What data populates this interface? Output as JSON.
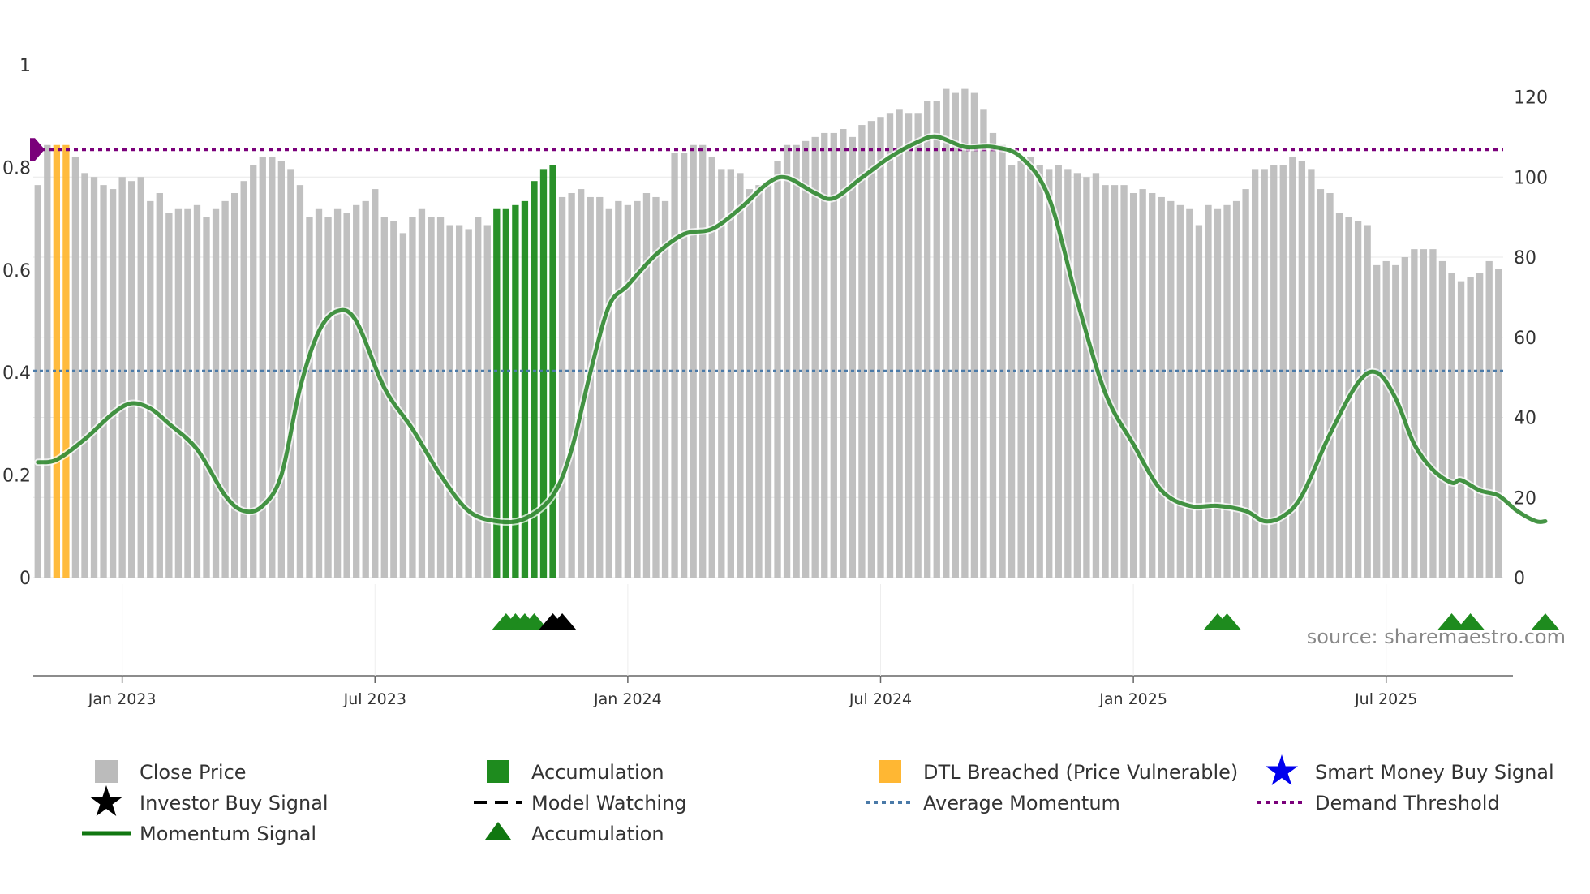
{
  "chart_data": {
    "type": "bar",
    "title": "",
    "source_text": "source: sharemaestro.com",
    "left_axis": {
      "ticks": [
        0,
        0.2,
        0.4,
        0.6,
        0.8,
        1
      ],
      "tick_labels": [
        "0",
        "0.2",
        "0.4",
        "0.6",
        "0.8",
        "1"
      ],
      "ylim": [
        0,
        1
      ]
    },
    "right_axis": {
      "ticks": [
        0,
        20,
        40,
        60,
        80,
        100,
        120
      ],
      "tick_labels": [
        "0",
        "20",
        "40",
        "60",
        "80",
        "100",
        "120"
      ],
      "ylim": [
        0,
        128
      ]
    },
    "x_axis": {
      "tick_labels": [
        "Jan 2023",
        "Jul 2023",
        "Jan 2024",
        "Jul 2024",
        "Jan 2025",
        "Jul 2025"
      ],
      "tick_index": [
        9,
        36,
        63,
        90,
        117,
        144
      ]
    },
    "average_momentum": 0.403,
    "demand_threshold": 0.835,
    "close_price": [
      98,
      108,
      108,
      108,
      105,
      101,
      100,
      98,
      97,
      100,
      99,
      100,
      94,
      96,
      91,
      92,
      92,
      93,
      90,
      92,
      94,
      96,
      99,
      103,
      105,
      105,
      104,
      102,
      98,
      90,
      92,
      90,
      92,
      91,
      93,
      94,
      97,
      90,
      89,
      86,
      90,
      92,
      90,
      90,
      88,
      88,
      87,
      90,
      88,
      92,
      92,
      93,
      94,
      99,
      102,
      103,
      95,
      96,
      97,
      95,
      95,
      92,
      94,
      93,
      94,
      96,
      95,
      94,
      106,
      106,
      108,
      108,
      105,
      102,
      102,
      101,
      97,
      98,
      98,
      104,
      108,
      108,
      109,
      110,
      111,
      111,
      112,
      110,
      113,
      114,
      115,
      116,
      117,
      116,
      116,
      119,
      119,
      122,
      121,
      122,
      121,
      117,
      111,
      108,
      103,
      104,
      105,
      103,
      102,
      103,
      102,
      101,
      100,
      101,
      98,
      98,
      98,
      96,
      97,
      96,
      95,
      94,
      93,
      92,
      88,
      93,
      92,
      93,
      94,
      97,
      102,
      102,
      103,
      103,
      105,
      104,
      102,
      97,
      96,
      91,
      90,
      89,
      88,
      78,
      79,
      78,
      80,
      82,
      82,
      82,
      79,
      76,
      74,
      75,
      76,
      79,
      77
    ],
    "bar_state": [
      "g",
      "g",
      "o",
      "o",
      "g",
      "g",
      "g",
      "g",
      "g",
      "g",
      "g",
      "g",
      "g",
      "g",
      "g",
      "g",
      "g",
      "g",
      "g",
      "g",
      "g",
      "g",
      "g",
      "g",
      "g",
      "g",
      "g",
      "g",
      "g",
      "g",
      "g",
      "g",
      "g",
      "g",
      "g",
      "g",
      "g",
      "g",
      "g",
      "g",
      "g",
      "g",
      "g",
      "g",
      "g",
      "g",
      "g",
      "g",
      "g",
      "a",
      "a",
      "a",
      "a",
      "a",
      "a",
      "a",
      "g",
      "g",
      "g",
      "g",
      "g",
      "g",
      "g",
      "g",
      "g",
      "g",
      "g",
      "g",
      "g",
      "g",
      "g",
      "g",
      "g",
      "g",
      "g",
      "g",
      "g",
      "g",
      "g",
      "g",
      "g",
      "g",
      "g",
      "g",
      "g",
      "g",
      "g",
      "g",
      "g",
      "g",
      "g",
      "g",
      "g",
      "g",
      "g",
      "g",
      "g",
      "g",
      "g",
      "g",
      "g",
      "g",
      "g",
      "g",
      "g",
      "g",
      "g",
      "g",
      "g",
      "g",
      "g",
      "g",
      "g",
      "g",
      "g",
      "g",
      "g",
      "g",
      "g",
      "g",
      "g",
      "g",
      "g",
      "g",
      "g",
      "g",
      "g",
      "g",
      "g",
      "g",
      "g",
      "g",
      "g",
      "g",
      "g",
      "g",
      "g",
      "g",
      "g",
      "g",
      "g",
      "g",
      "g",
      "g",
      "g",
      "g",
      "g",
      "g",
      "g",
      "g",
      "g",
      "g",
      "g",
      "g",
      "g",
      "g",
      "g"
    ],
    "momentum_points": [
      [
        0,
        0.225
      ],
      [
        2,
        0.23
      ],
      [
        5,
        0.27
      ],
      [
        8,
        0.32
      ],
      [
        10,
        0.34
      ],
      [
        12,
        0.33
      ],
      [
        14,
        0.3
      ],
      [
        17,
        0.25
      ],
      [
        20,
        0.16
      ],
      [
        22,
        0.13
      ],
      [
        24,
        0.14
      ],
      [
        26,
        0.2
      ],
      [
        28,
        0.37
      ],
      [
        30,
        0.48
      ],
      [
        32,
        0.52
      ],
      [
        34,
        0.5
      ],
      [
        37,
        0.37
      ],
      [
        40,
        0.29
      ],
      [
        43,
        0.2
      ],
      [
        46,
        0.13
      ],
      [
        49,
        0.11
      ],
      [
        52,
        0.115
      ],
      [
        55,
        0.16
      ],
      [
        57,
        0.25
      ],
      [
        59,
        0.4
      ],
      [
        61,
        0.53
      ],
      [
        63,
        0.57
      ],
      [
        66,
        0.63
      ],
      [
        69,
        0.67
      ],
      [
        72,
        0.68
      ],
      [
        75,
        0.72
      ],
      [
        78,
        0.77
      ],
      [
        80,
        0.78
      ],
      [
        83,
        0.75
      ],
      [
        85,
        0.74
      ],
      [
        88,
        0.78
      ],
      [
        91,
        0.82
      ],
      [
        94,
        0.85
      ],
      [
        96,
        0.86
      ],
      [
        99,
        0.84
      ],
      [
        102,
        0.84
      ],
      [
        105,
        0.82
      ],
      [
        108,
        0.74
      ],
      [
        111,
        0.54
      ],
      [
        114,
        0.36
      ],
      [
        117,
        0.26
      ],
      [
        120,
        0.17
      ],
      [
        123,
        0.14
      ],
      [
        126,
        0.14
      ],
      [
        129,
        0.13
      ],
      [
        131,
        0.11
      ],
      [
        133,
        0.12
      ],
      [
        135,
        0.16
      ],
      [
        138,
        0.28
      ],
      [
        141,
        0.38
      ],
      [
        143,
        0.4
      ],
      [
        145,
        0.35
      ],
      [
        147,
        0.26
      ],
      [
        149,
        0.21
      ],
      [
        151,
        0.185
      ],
      [
        152,
        0.19
      ],
      [
        154,
        0.17
      ],
      [
        156,
        0.16
      ],
      [
        158,
        0.13
      ],
      [
        160,
        0.11
      ],
      [
        161,
        0.11
      ]
    ],
    "accumulation_markers": [
      50,
      51,
      52,
      53,
      126,
      127,
      151,
      153,
      161
    ],
    "investor_buy_markers": [
      55,
      56
    ],
    "left_axis_marker": {
      "value": 0.835,
      "color": "#7a007a"
    },
    "colors": {
      "close_price": "#bbbbbb",
      "accumulation": "#1e8b1e",
      "dtl_breached": "#ffb733",
      "momentum": "#117711",
      "average_momentum": "#4a7aa8",
      "demand_threshold": "#7a007a",
      "smart_money": "#0000ee",
      "investor_buy": "#000000"
    },
    "legend": [
      {
        "key": "close",
        "label": "Close Price",
        "symbol": "square",
        "color": "#bbbbbb"
      },
      {
        "key": "accum",
        "label": "Accumulation",
        "symbol": "square",
        "color": "#1e8b1e"
      },
      {
        "key": "dtl",
        "label": "DTL Breached (Price Vulnerable)",
        "symbol": "square",
        "color": "#ffb733"
      },
      {
        "key": "smart",
        "label": "Smart Money Buy Signal",
        "symbol": "star",
        "color": "#0000ee"
      },
      {
        "key": "investor",
        "label": "Investor Buy Signal",
        "symbol": "star",
        "color": "#000000"
      },
      {
        "key": "watching",
        "label": "Model Watching",
        "symbol": "dash",
        "color": "#000000"
      },
      {
        "key": "avgmom",
        "label": "Average Momentum",
        "symbol": "dot",
        "color": "#4a7aa8"
      },
      {
        "key": "demand",
        "label": "Demand Threshold",
        "symbol": "dot",
        "color": "#7a007a"
      },
      {
        "key": "momentum",
        "label": "Momentum Signal",
        "symbol": "line",
        "color": "#117711"
      },
      {
        "key": "accumtri",
        "label": "Accumulation",
        "symbol": "triangle",
        "color": "#117711"
      }
    ]
  }
}
